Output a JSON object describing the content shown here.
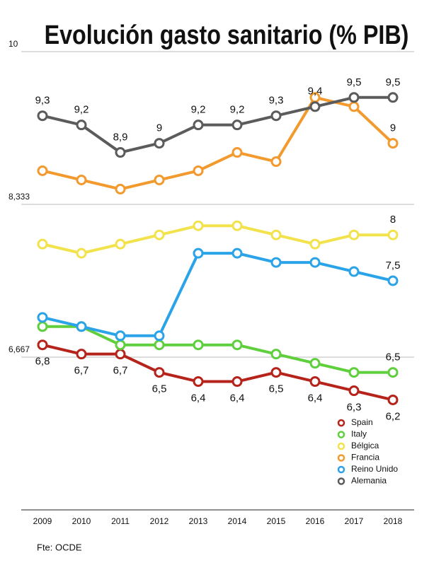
{
  "chart_data": {
    "type": "line",
    "title": "Evolución gasto sanitario (% PIB)",
    "source": "Fte: OCDE",
    "categories": [
      "2009",
      "2010",
      "2011",
      "2012",
      "2013",
      "2014",
      "2015",
      "2016",
      "2017",
      "2018"
    ],
    "ylim": [
      5,
      10
    ],
    "yticks": [
      {
        "value": 6.667,
        "label": "6,667"
      },
      {
        "value": 8.333,
        "label": "8,333"
      },
      10
    ],
    "grid": true,
    "legend": "lower right",
    "series": [
      {
        "name": "Spain",
        "color": "#b5231b",
        "values": [
          6.8,
          6.7,
          6.7,
          6.5,
          6.4,
          6.4,
          6.5,
          6.4,
          6.3,
          6.2
        ],
        "value_labels": [
          "6,8",
          "6,7",
          "6,7",
          "6,5",
          "6,4",
          "6,4",
          "6,5",
          "6,4",
          "6,3",
          "6,2"
        ]
      },
      {
        "name": "Italy",
        "color": "#5fcf3d",
        "values": [
          7.0,
          7.0,
          6.8,
          6.8,
          6.8,
          6.8,
          6.7,
          6.6,
          6.5,
          6.5
        ],
        "value_labels": [
          null,
          null,
          null,
          null,
          null,
          null,
          null,
          null,
          null,
          "6,5"
        ]
      },
      {
        "name": "Bélgica",
        "color": "#f2e24c",
        "values": [
          7.9,
          7.8,
          7.9,
          8.0,
          8.1,
          8.1,
          8.0,
          7.9,
          8.0,
          8.0
        ],
        "value_labels": [
          null,
          null,
          null,
          null,
          null,
          null,
          null,
          null,
          null,
          "8"
        ]
      },
      {
        "name": "Francia",
        "color": "#f39a2e",
        "values": [
          8.7,
          8.6,
          8.5,
          8.6,
          8.7,
          8.9,
          8.8,
          9.5,
          9.4,
          9.0
        ],
        "value_labels": [
          null,
          null,
          null,
          null,
          null,
          null,
          null,
          null,
          null,
          "9"
        ]
      },
      {
        "name": "Reino Unido",
        "color": "#2aa3e8",
        "values": [
          7.1,
          7.0,
          6.9,
          6.9,
          7.8,
          7.8,
          7.7,
          7.7,
          7.6,
          7.5
        ],
        "value_labels": [
          null,
          null,
          null,
          null,
          null,
          null,
          null,
          null,
          null,
          "7,5"
        ]
      },
      {
        "name": "Alemania",
        "color": "#5b5b5b",
        "values": [
          9.3,
          9.2,
          8.9,
          9.0,
          9.2,
          9.2,
          9.3,
          9.4,
          9.5,
          9.5
        ],
        "value_labels": [
          "9,3",
          "9,2",
          "8,9",
          "9",
          "9,2",
          "9,2",
          "9,3",
          "9,4",
          "9,5",
          "9,5"
        ]
      }
    ]
  }
}
